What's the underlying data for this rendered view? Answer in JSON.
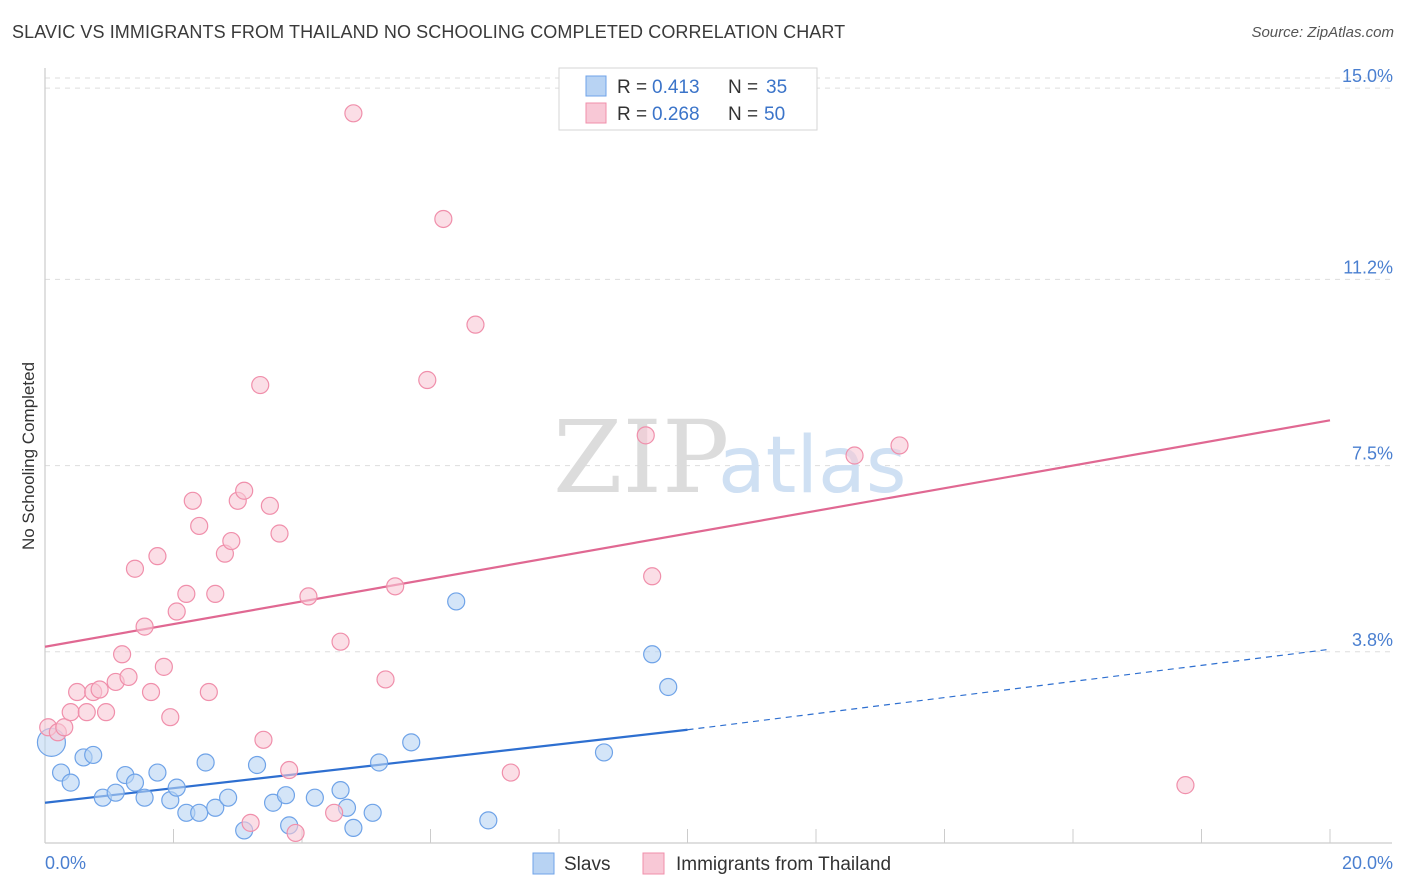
{
  "title": "SLAVIC VS IMMIGRANTS FROM THAILAND NO SCHOOLING COMPLETED CORRELATION CHART",
  "source": "Source: ZipAtlas.com",
  "watermark": {
    "zip": "ZIP",
    "atlas": "atlas"
  },
  "legend_top": [
    {
      "r_label": "R =",
      "r_value": "0.413",
      "n_label": "N =",
      "n_value": "35"
    },
    {
      "r_label": "R =",
      "r_value": "0.268",
      "n_label": "N =",
      "n_value": "50"
    }
  ],
  "chart_data": {
    "type": "scatter",
    "title": "SLAVIC VS IMMIGRANTS FROM THAILAND NO SCHOOLING COMPLETED CORRELATION CHART",
    "xlabel": "",
    "ylabel": "No Schooling Completed",
    "xlim": [
      0,
      20
    ],
    "ylim": [
      0,
      15.4
    ],
    "x_tick_labels": [
      "0.0%",
      "20.0%"
    ],
    "y_ticks": [
      3.8,
      7.5,
      11.2,
      15.0
    ],
    "y_tick_labels": [
      "3.8%",
      "7.5%",
      "11.2%",
      "15.0%"
    ],
    "grid": true,
    "legend": "top-center",
    "series": [
      {
        "name": "Slavs",
        "color": "#6fa3e8",
        "fill": "#b8d3f3",
        "trend": {
          "x1": 0,
          "y1": 0.8,
          "x2": 10,
          "y2": 2.25,
          "dash_to_x": 20,
          "dash_to_y": 3.85,
          "color": "#2e6fd0"
        },
        "points": [
          [
            0.1,
            2.0
          ],
          [
            0.25,
            1.4
          ],
          [
            0.4,
            1.2
          ],
          [
            0.6,
            1.7
          ],
          [
            0.75,
            1.75
          ],
          [
            0.9,
            0.9
          ],
          [
            1.1,
            1.0
          ],
          [
            1.25,
            1.35
          ],
          [
            1.4,
            1.2
          ],
          [
            1.55,
            0.9
          ],
          [
            1.75,
            1.4
          ],
          [
            1.95,
            0.85
          ],
          [
            2.05,
            1.1
          ],
          [
            2.2,
            0.6
          ],
          [
            2.4,
            0.6
          ],
          [
            2.5,
            1.6
          ],
          [
            2.65,
            0.7
          ],
          [
            2.85,
            0.9
          ],
          [
            3.1,
            0.25
          ],
          [
            3.3,
            1.55
          ],
          [
            3.55,
            0.8
          ],
          [
            3.75,
            0.95
          ],
          [
            3.8,
            0.35
          ],
          [
            4.2,
            0.9
          ],
          [
            4.6,
            1.05
          ],
          [
            4.7,
            0.7
          ],
          [
            4.8,
            0.3
          ],
          [
            5.1,
            0.6
          ],
          [
            5.2,
            1.6
          ],
          [
            5.7,
            2.0
          ],
          [
            6.4,
            4.8
          ],
          [
            6.9,
            0.45
          ],
          [
            8.7,
            1.8
          ],
          [
            9.45,
            3.75
          ],
          [
            9.7,
            3.1
          ]
        ]
      },
      {
        "name": "Immigrants from Thailand",
        "color": "#f08fab",
        "fill": "#f8c8d6",
        "trend": {
          "x1": 0,
          "y1": 3.9,
          "x2": 20,
          "y2": 8.4,
          "color": "#e06892"
        },
        "points": [
          [
            0.05,
            2.3
          ],
          [
            0.2,
            2.2
          ],
          [
            0.3,
            2.3
          ],
          [
            0.4,
            2.6
          ],
          [
            0.5,
            3.0
          ],
          [
            0.65,
            2.6
          ],
          [
            0.75,
            3.0
          ],
          [
            0.85,
            3.05
          ],
          [
            0.95,
            2.6
          ],
          [
            1.1,
            3.2
          ],
          [
            1.2,
            3.75
          ],
          [
            1.3,
            3.3
          ],
          [
            1.4,
            5.45
          ],
          [
            1.55,
            4.3
          ],
          [
            1.65,
            3.0
          ],
          [
            1.75,
            5.7
          ],
          [
            1.85,
            3.5
          ],
          [
            1.95,
            2.5
          ],
          [
            2.05,
            4.6
          ],
          [
            2.2,
            4.95
          ],
          [
            2.3,
            6.8
          ],
          [
            2.4,
            6.3
          ],
          [
            2.55,
            3.0
          ],
          [
            2.65,
            4.95
          ],
          [
            2.8,
            5.75
          ],
          [
            2.9,
            6.0
          ],
          [
            3.0,
            6.8
          ],
          [
            3.1,
            7.0
          ],
          [
            3.2,
            0.4
          ],
          [
            3.35,
            9.1
          ],
          [
            3.4,
            2.05
          ],
          [
            3.5,
            6.7
          ],
          [
            3.65,
            6.15
          ],
          [
            3.8,
            1.45
          ],
          [
            3.9,
            0.2
          ],
          [
            4.1,
            4.9
          ],
          [
            4.5,
            0.6
          ],
          [
            4.6,
            4.0
          ],
          [
            4.8,
            14.5
          ],
          [
            5.3,
            3.25
          ],
          [
            5.45,
            5.1
          ],
          [
            5.95,
            9.2
          ],
          [
            6.2,
            12.4
          ],
          [
            6.7,
            10.3
          ],
          [
            7.25,
            1.4
          ],
          [
            9.35,
            8.1
          ],
          [
            9.45,
            5.3
          ],
          [
            12.6,
            7.7
          ],
          [
            13.3,
            7.9
          ],
          [
            17.75,
            1.15
          ]
        ]
      }
    ]
  }
}
